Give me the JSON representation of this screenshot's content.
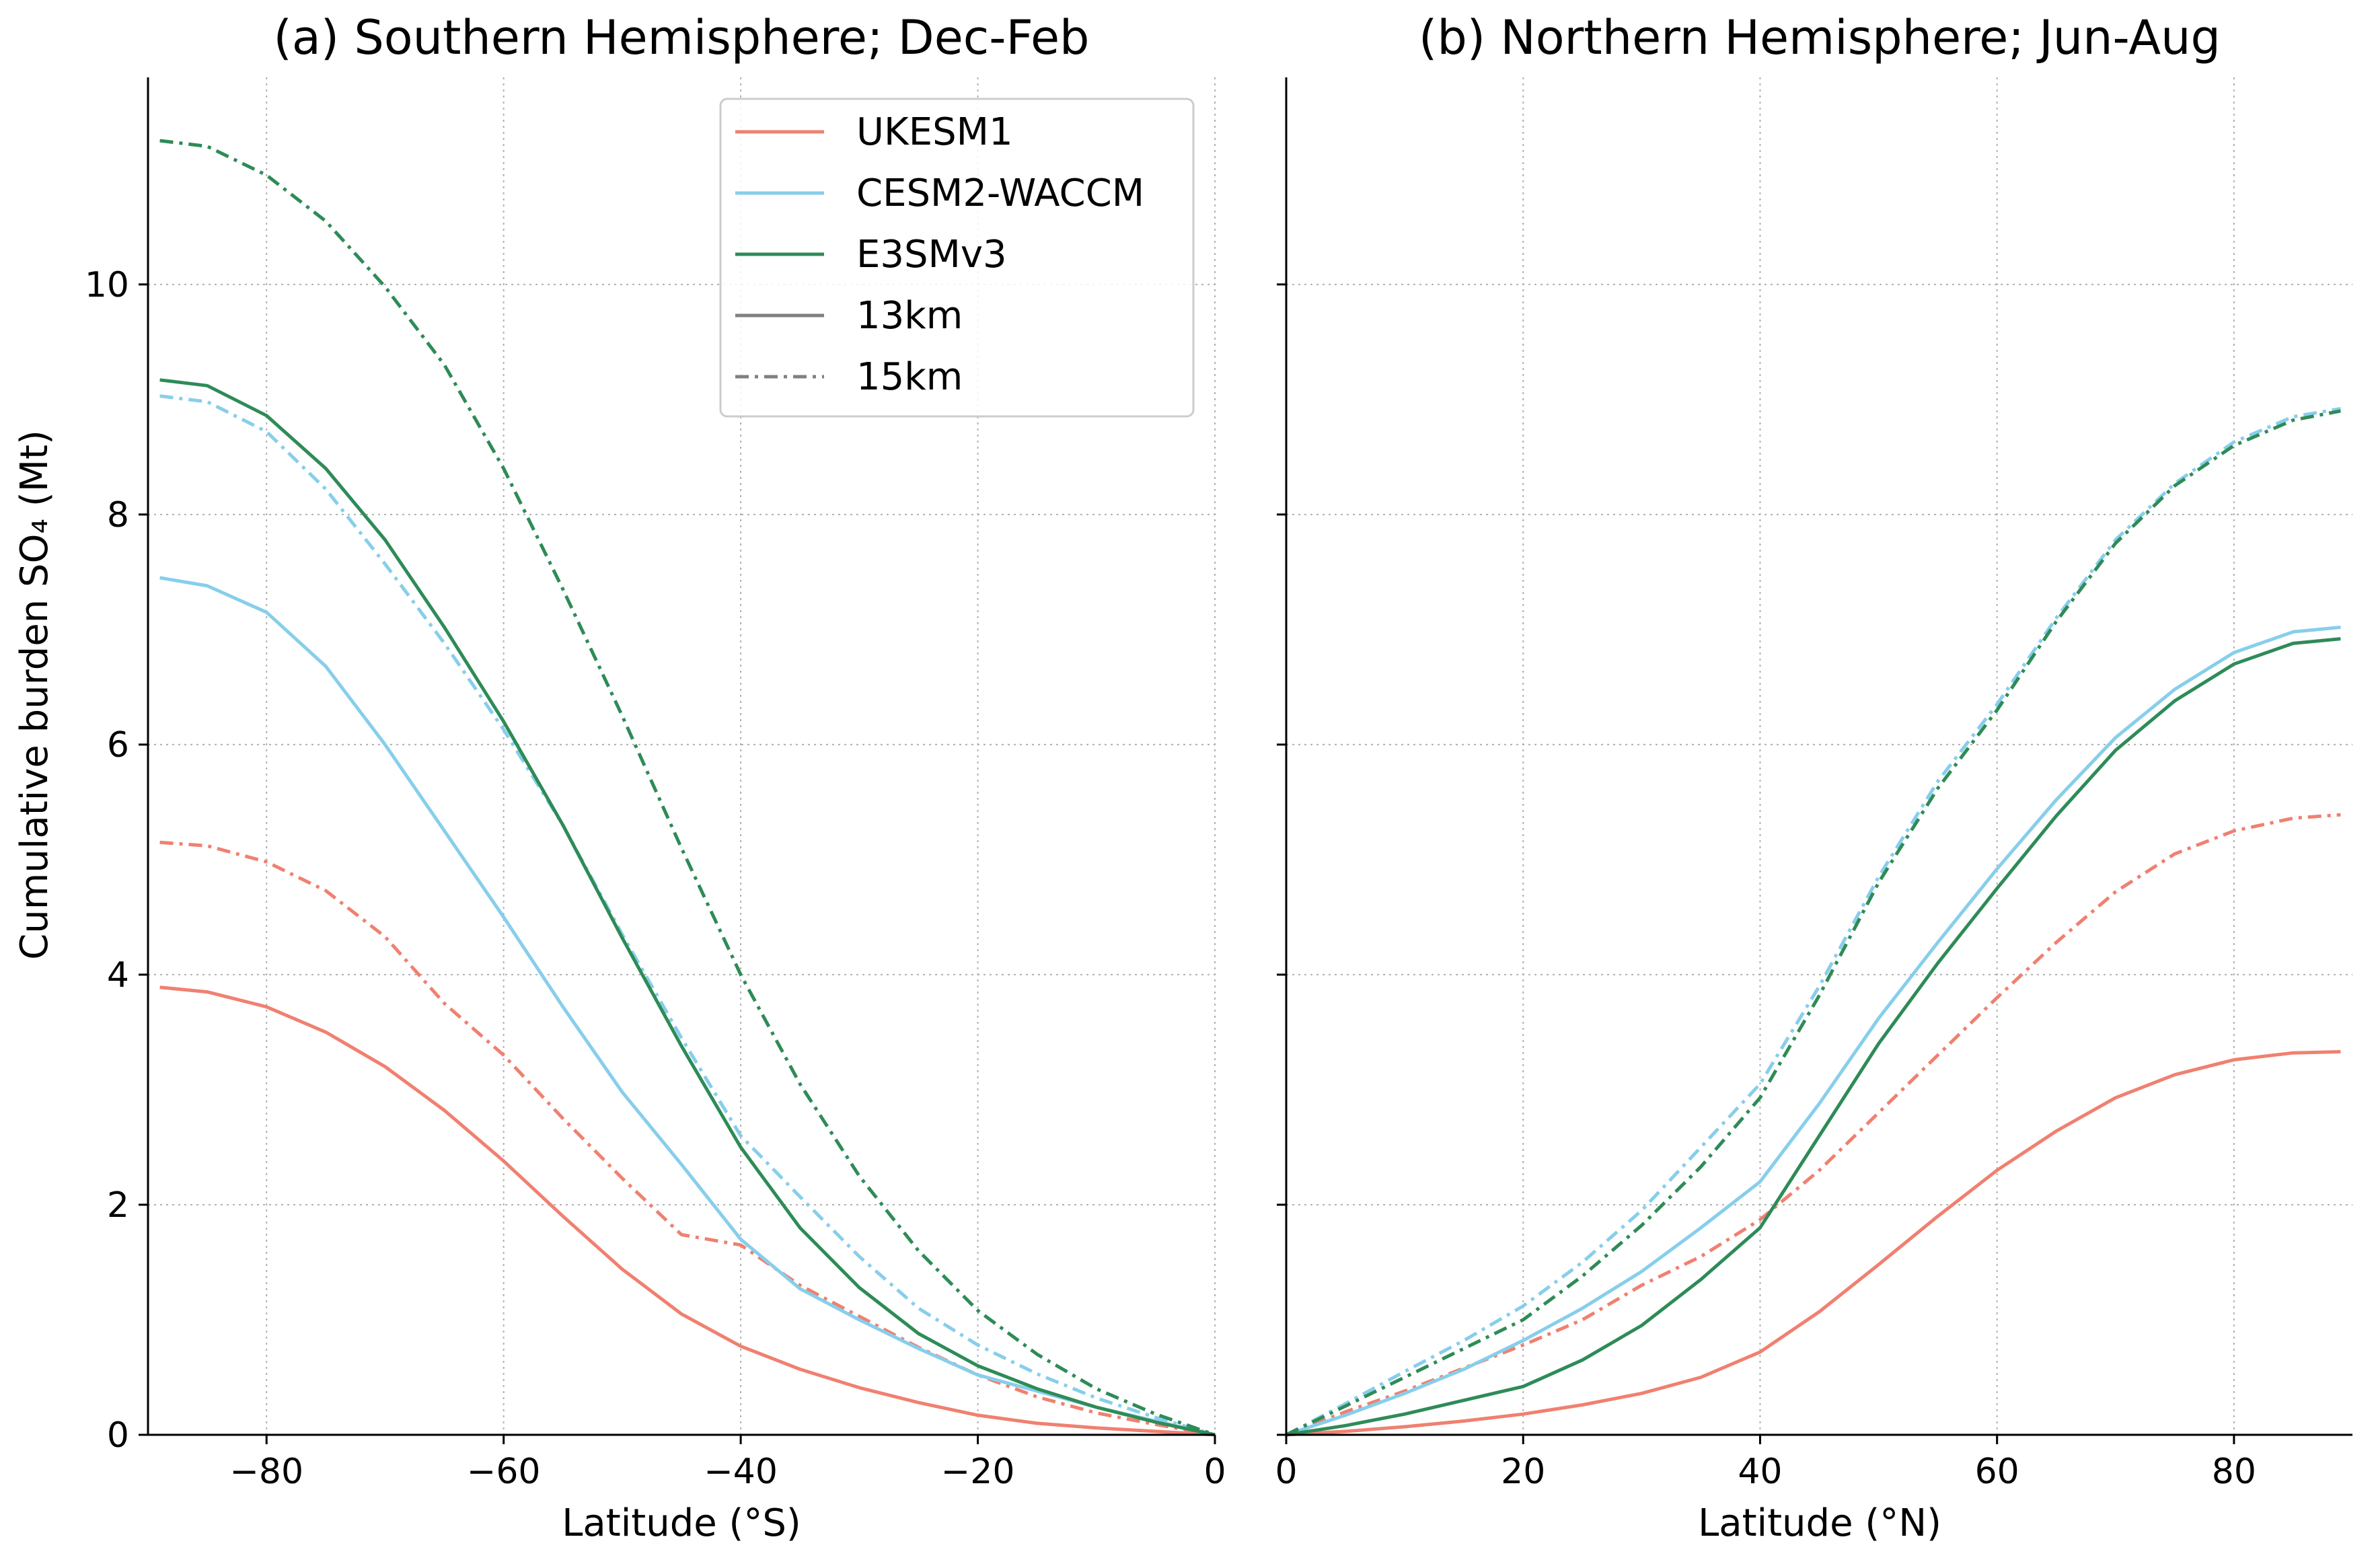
{
  "figure": {
    "ylabel": "Cumulative burden SO₄ (Mt)"
  },
  "legend": {
    "entries": [
      {
        "label": "UKESM1",
        "color": "#f08070",
        "style": "solid"
      },
      {
        "label": "CESM2-WACCM",
        "color": "#87ceeb",
        "style": "solid"
      },
      {
        "label": "E3SMv3",
        "color": "#2e8b57",
        "style": "solid"
      },
      {
        "label": "13km",
        "color": "#808080",
        "style": "solid"
      },
      {
        "label": "15km",
        "color": "#808080",
        "style": "dashdot"
      }
    ],
    "placement": "upper-right of panel (a)"
  },
  "chart_data": [
    {
      "type": "line",
      "title": "(a) Southern Hemisphere; Dec-Feb",
      "xlabel": "Latitude (°S)",
      "ylabel": "Cumulative burden SO₄ (Mt)",
      "xlim": [
        -90,
        0
      ],
      "ylim": [
        0,
        11.8
      ],
      "xticks": [
        -80,
        -60,
        -40,
        -20,
        0
      ],
      "xtick_labels": [
        "−80",
        "−60",
        "−40",
        "−20",
        "0"
      ],
      "yticks": [
        0,
        2,
        4,
        6,
        8,
        10
      ],
      "ytick_labels": [
        "0",
        "2",
        "4",
        "6",
        "8",
        "10"
      ],
      "grid": true,
      "series": [
        {
          "model": "UKESM1",
          "altitude": "13km",
          "color": "#f08070",
          "style": "solid",
          "x": [
            -89,
            -85,
            -80,
            -75,
            -70,
            -65,
            -60,
            -55,
            -50,
            -45,
            -40,
            -35,
            -30,
            -25,
            -20,
            -15,
            -10,
            -5,
            0
          ],
          "y": [
            3.89,
            3.85,
            3.72,
            3.5,
            3.2,
            2.82,
            2.38,
            1.9,
            1.44,
            1.05,
            0.77,
            0.57,
            0.41,
            0.28,
            0.17,
            0.1,
            0.06,
            0.03,
            0.0
          ]
        },
        {
          "model": "UKESM1",
          "altitude": "15km",
          "color": "#f08070",
          "style": "dashdot",
          "x": [
            -89,
            -85,
            -80,
            -75,
            -70,
            -65,
            -60,
            -55,
            -50,
            -45,
            -40,
            -35,
            -30,
            -25,
            -20,
            -15,
            -10,
            -5,
            0
          ],
          "y": [
            5.15,
            5.12,
            4.98,
            4.73,
            4.33,
            3.75,
            3.3,
            2.75,
            2.23,
            1.74,
            1.65,
            1.3,
            1.03,
            0.76,
            0.52,
            0.33,
            0.19,
            0.09,
            0.0
          ]
        },
        {
          "model": "CESM2-WACCM",
          "altitude": "13km",
          "color": "#87ceeb",
          "style": "solid",
          "x": [
            -89,
            -85,
            -80,
            -75,
            -70,
            -65,
            -60,
            -55,
            -50,
            -45,
            -40,
            -35,
            -30,
            -25,
            -20,
            -15,
            -10,
            -5,
            0
          ],
          "y": [
            7.45,
            7.38,
            7.15,
            6.68,
            6.0,
            5.25,
            4.5,
            3.72,
            2.98,
            2.35,
            1.7,
            1.27,
            1.0,
            0.75,
            0.52,
            0.38,
            0.24,
            0.12,
            0.0
          ]
        },
        {
          "model": "CESM2-WACCM",
          "altitude": "15km",
          "color": "#87ceeb",
          "style": "dashdot",
          "x": [
            -89,
            -85,
            -80,
            -75,
            -70,
            -65,
            -60,
            -55,
            -50,
            -45,
            -40,
            -35,
            -30,
            -25,
            -20,
            -15,
            -10,
            -5,
            0
          ],
          "y": [
            9.03,
            8.98,
            8.72,
            8.22,
            7.57,
            6.88,
            6.13,
            5.3,
            4.35,
            3.45,
            2.6,
            2.07,
            1.55,
            1.1,
            0.78,
            0.53,
            0.32,
            0.15,
            0.0
          ]
        },
        {
          "model": "E3SMv3",
          "altitude": "13km",
          "color": "#2e8b57",
          "style": "solid",
          "x": [
            -89,
            -85,
            -80,
            -75,
            -70,
            -65,
            -60,
            -55,
            -50,
            -45,
            -40,
            -35,
            -30,
            -25,
            -20,
            -15,
            -10,
            -5,
            0
          ],
          "y": [
            9.17,
            9.12,
            8.86,
            8.4,
            7.78,
            7.02,
            6.2,
            5.3,
            4.32,
            3.38,
            2.5,
            1.8,
            1.28,
            0.88,
            0.6,
            0.4,
            0.24,
            0.11,
            0.0
          ]
        },
        {
          "model": "E3SMv3",
          "altitude": "15km",
          "color": "#2e8b57",
          "style": "dashdot",
          "x": [
            -89,
            -85,
            -80,
            -75,
            -70,
            -65,
            -60,
            -55,
            -50,
            -45,
            -40,
            -35,
            -30,
            -25,
            -20,
            -15,
            -10,
            -5,
            0
          ],
          "y": [
            11.25,
            11.2,
            10.95,
            10.55,
            9.98,
            9.3,
            8.4,
            7.35,
            6.25,
            5.1,
            4.0,
            3.05,
            2.25,
            1.6,
            1.08,
            0.7,
            0.4,
            0.18,
            0.0
          ]
        }
      ]
    },
    {
      "type": "line",
      "title": "(b) Northern Hemisphere; Jun-Aug",
      "xlabel": "Latitude (°N)",
      "xlim": [
        0,
        90
      ],
      "ylim": [
        0,
        11.8
      ],
      "xticks": [
        0,
        20,
        40,
        60,
        80
      ],
      "xtick_labels": [
        "0",
        "20",
        "40",
        "60",
        "80"
      ],
      "yticks": [
        0,
        2,
        4,
        6,
        8,
        10
      ],
      "ytick_labels": [],
      "grid": true,
      "series": [
        {
          "model": "UKESM1",
          "altitude": "13km",
          "color": "#f08070",
          "style": "solid",
          "x": [
            0,
            5,
            10,
            15,
            20,
            25,
            30,
            35,
            40,
            45,
            50,
            55,
            60,
            65,
            70,
            75,
            80,
            85,
            89
          ],
          "y": [
            0.0,
            0.03,
            0.07,
            0.12,
            0.18,
            0.26,
            0.36,
            0.5,
            0.72,
            1.07,
            1.48,
            1.9,
            2.3,
            2.64,
            2.93,
            3.13,
            3.26,
            3.32,
            3.33
          ]
        },
        {
          "model": "UKESM1",
          "altitude": "15km",
          "color": "#f08070",
          "style": "dashdot",
          "x": [
            0,
            5,
            10,
            15,
            20,
            25,
            30,
            35,
            40,
            45,
            50,
            55,
            60,
            65,
            70,
            75,
            80,
            85,
            89
          ],
          "y": [
            0.0,
            0.2,
            0.38,
            0.58,
            0.78,
            1.0,
            1.3,
            1.55,
            1.87,
            2.3,
            2.8,
            3.3,
            3.8,
            4.28,
            4.72,
            5.05,
            5.25,
            5.36,
            5.39
          ]
        },
        {
          "model": "CESM2-WACCM",
          "altitude": "13km",
          "color": "#87ceeb",
          "style": "solid",
          "x": [
            0,
            5,
            10,
            15,
            20,
            25,
            30,
            35,
            40,
            45,
            50,
            55,
            60,
            65,
            70,
            75,
            80,
            85,
            89
          ],
          "y": [
            0.0,
            0.17,
            0.36,
            0.57,
            0.82,
            1.1,
            1.42,
            1.8,
            2.2,
            2.88,
            3.62,
            4.28,
            4.92,
            5.52,
            6.06,
            6.48,
            6.8,
            6.98,
            7.02
          ]
        },
        {
          "model": "CESM2-WACCM",
          "altitude": "15km",
          "color": "#87ceeb",
          "style": "dashdot",
          "x": [
            0,
            5,
            10,
            15,
            20,
            25,
            30,
            35,
            40,
            45,
            50,
            55,
            60,
            65,
            70,
            75,
            80,
            85,
            89
          ],
          "y": [
            0.0,
            0.27,
            0.55,
            0.82,
            1.12,
            1.5,
            1.95,
            2.5,
            3.05,
            3.9,
            4.85,
            5.68,
            6.35,
            7.1,
            7.78,
            8.27,
            8.63,
            8.85,
            8.92
          ]
        },
        {
          "model": "E3SMv3",
          "altitude": "13km",
          "color": "#2e8b57",
          "style": "solid",
          "x": [
            0,
            5,
            10,
            15,
            20,
            25,
            30,
            35,
            40,
            45,
            50,
            55,
            60,
            65,
            70,
            75,
            80,
            85,
            89
          ],
          "y": [
            0.0,
            0.08,
            0.18,
            0.3,
            0.42,
            0.65,
            0.95,
            1.35,
            1.8,
            2.6,
            3.4,
            4.1,
            4.75,
            5.38,
            5.95,
            6.38,
            6.7,
            6.88,
            6.92
          ]
        },
        {
          "model": "E3SMv3",
          "altitude": "15km",
          "color": "#2e8b57",
          "style": "dashdot",
          "x": [
            0,
            5,
            10,
            15,
            20,
            25,
            30,
            35,
            40,
            45,
            50,
            55,
            60,
            65,
            70,
            75,
            80,
            85,
            89
          ],
          "y": [
            0.0,
            0.25,
            0.5,
            0.75,
            1.0,
            1.38,
            1.82,
            2.33,
            2.93,
            3.82,
            4.8,
            5.62,
            6.3,
            7.07,
            7.75,
            8.25,
            8.6,
            8.82,
            8.9
          ]
        }
      ]
    }
  ]
}
